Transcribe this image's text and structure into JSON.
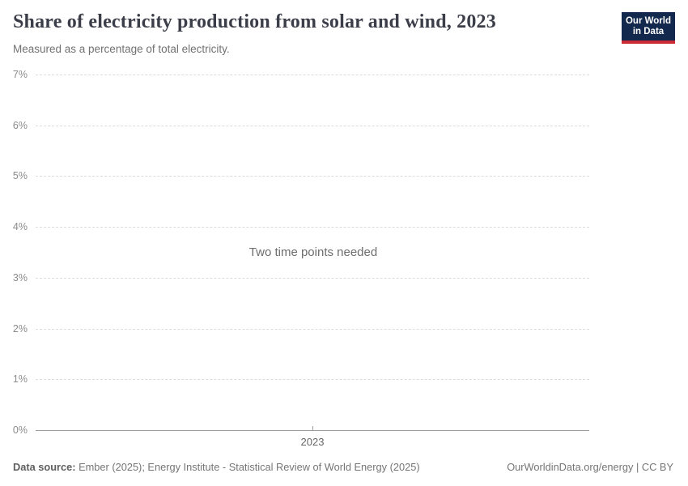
{
  "header": {
    "title": "Share of electricity production from solar and wind, 2023",
    "subtitle": "Measured as a percentage of total electricity.",
    "logo": {
      "line1": "Our World",
      "line2": "in Data"
    }
  },
  "chart_data": {
    "type": "line",
    "title": "Share of electricity production from solar and wind, 2023",
    "subtitle": "Measured as a percentage of total electricity.",
    "xlabel": "",
    "ylabel": "",
    "x": [
      2023
    ],
    "series": [],
    "x_ticks": [
      "2023"
    ],
    "y_ticks": [
      "0%",
      "1%",
      "2%",
      "3%",
      "4%",
      "5%",
      "6%",
      "7%"
    ],
    "ylim": [
      0,
      7
    ],
    "grid": "horizontal-dashed",
    "legend": "none",
    "empty_state_message": "Two time points needed"
  },
  "footer": {
    "datasource_label": "Data source:",
    "datasource_value": " Ember (2025); Energy Institute - Statistical Review of World Energy (2025)",
    "attribution": "OurWorldinData.org/energy | CC BY"
  },
  "colors": {
    "title_text": "#3b3e48",
    "subtitle_text": "#717171",
    "axis_label_text": "#8c8c8c",
    "x_axis_label_text": "#666666",
    "gridline": "#dcdcdc",
    "axis_line": "#9e9e9e",
    "footer_text": "#757575",
    "logo_navy": "#12294d",
    "logo_red": "#cc2a36",
    "background": "#ffffff"
  }
}
